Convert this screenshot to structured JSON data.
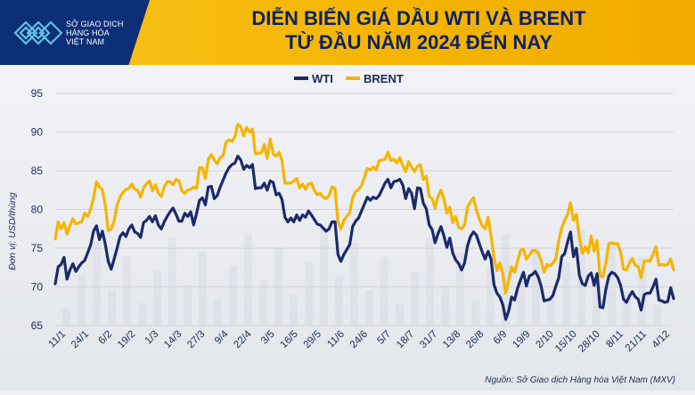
{
  "logo": {
    "line1": "SỞ GIAO DỊCH",
    "line2": "HÀNG HÓA",
    "line3": "VIỆT NAM"
  },
  "title": {
    "line1": "DIỄN BIẾN GIÁ DẦU WTI VÀ BRENT",
    "line2": "TỪ ĐẦU NĂM 2024 ĐẾN NAY"
  },
  "source": "Nguồn: Sở Giao dịch Hàng hóa Việt Nam (MXV)",
  "colors": {
    "wti": "#1b2a6b",
    "brent": "#f5b400",
    "banner": "#f5b400",
    "logo_bg": "#0d2f78"
  },
  "chart_data": {
    "type": "line",
    "title": "DIỄN BIẾN GIÁ DẦU WTI VÀ BRENT TỪ ĐẦU NĂM 2024 ĐẾN NAY",
    "ylabel": "Đơn vị: USD/thùng",
    "xlabel": "",
    "ylim": [
      65,
      95
    ],
    "yticks": [
      65,
      70,
      75,
      80,
      85,
      90,
      95
    ],
    "grid": true,
    "legend_position": "top-center",
    "x_tick_labels": [
      "11/1",
      "24/1",
      "6/2",
      "19/2",
      "1/3",
      "14/3",
      "27/3",
      "9/4",
      "22/4",
      "3/5",
      "16/5",
      "29/5",
      "11/6",
      "24/6",
      "5/7",
      "18/7",
      "31/7",
      "13/8",
      "26/8",
      "6/9",
      "19/9",
      "2/10",
      "15/10",
      "28/10",
      "8/11",
      "21/11",
      "4/12"
    ],
    "series": [
      {
        "name": "WTI",
        "color": "#1b2a6b",
        "values": [
          70.4,
          72.6,
          72.9,
          73.8,
          71.0,
          72.2,
          73.0,
          72.0,
          72.6,
          73.1,
          73.4,
          74.4,
          75.4,
          77.2,
          77.9,
          76.1,
          77.2,
          75.5,
          73.3,
          72.3,
          73.6,
          75.0,
          76.5,
          77.0,
          76.5,
          77.5,
          78.0,
          77.1,
          76.9,
          76.4,
          78.3,
          78.6,
          79.1,
          78.4,
          79.2,
          78.0,
          77.5,
          78.4,
          79.1,
          79.7,
          80.2,
          79.4,
          78.5,
          78.5,
          79.5,
          79.1,
          79.7,
          78.0,
          79.5,
          81.2,
          81.5,
          80.6,
          82.9,
          83.0,
          81.4,
          81.8,
          82.9,
          83.8,
          84.7,
          85.4,
          85.8,
          86.0,
          86.9,
          86.4,
          85.2,
          85.7,
          85.4,
          85.8,
          82.7,
          82.8,
          82.8,
          83.4,
          82.5,
          83.7,
          83.5,
          81.9,
          82.1,
          81.3,
          79.0,
          78.4,
          78.9,
          78.4,
          79.3,
          78.6,
          79.3,
          79.0,
          79.8,
          79.3,
          78.7,
          78.1,
          78.0,
          77.6,
          77.2,
          77.5,
          78.4,
          78.4,
          74.2,
          73.3,
          74.2,
          74.8,
          75.5,
          77.8,
          78.5,
          78.9,
          79.8,
          80.7,
          81.6,
          81.2,
          81.6,
          81.4,
          81.8,
          82.6,
          83.4,
          83.9,
          82.8,
          83.6,
          83.7,
          83.9,
          83.2,
          81.4,
          82.7,
          82.1,
          80.1,
          82.8,
          82.7,
          80.8,
          80.1,
          78.0,
          77.4,
          75.7,
          76.9,
          77.8,
          76.6,
          75.1,
          76.3,
          74.4,
          73.5,
          73.0,
          72.2,
          73.1,
          75.3,
          76.5,
          77.1,
          76.7,
          75.6,
          74.5,
          73.6,
          74.6,
          73.6,
          70.3,
          69.2,
          68.7,
          67.7,
          65.8,
          66.9,
          68.7,
          68.3,
          69.8,
          70.9,
          71.9,
          70.1,
          71.4,
          71.6,
          72.0,
          71.3,
          70.1,
          68.2,
          68.3,
          68.4,
          68.9,
          70.1,
          71.2,
          73.9,
          74.3,
          75.8,
          77.1,
          73.9,
          75.0,
          71.5,
          70.4,
          70.2,
          71.4,
          71.8,
          70.2,
          71.7,
          67.4,
          67.3,
          69.7,
          71.4,
          71.9,
          71.7,
          71.2,
          70.2,
          68.4,
          68.0,
          68.8,
          69.4,
          68.7,
          68.4,
          67.0,
          69.0,
          69.2,
          69.2,
          70.0,
          71.0,
          68.3,
          68.2,
          68.0,
          68.1,
          69.9,
          68.5
        ]
      },
      {
        "name": "BRENT",
        "color": "#f5b400",
        "values": [
          76.2,
          78.4,
          77.5,
          78.3,
          76.8,
          77.9,
          78.8,
          78.1,
          78.3,
          78.4,
          79.5,
          79.1,
          80.0,
          81.5,
          83.6,
          82.9,
          82.6,
          80.5,
          77.3,
          77.5,
          78.5,
          80.6,
          81.6,
          82.2,
          82.6,
          82.7,
          83.3,
          82.6,
          82.5,
          81.6,
          82.8,
          83.3,
          83.7,
          82.4,
          83.2,
          82.1,
          81.7,
          82.9,
          83.6,
          83.6,
          83.2,
          83.9,
          83.7,
          82.4,
          82.1,
          82.5,
          82.6,
          82.9,
          82.7,
          85.4,
          85.4,
          84.0,
          86.5,
          87.1,
          86.4,
          85.9,
          86.7,
          87.0,
          88.7,
          89.0,
          88.8,
          89.4,
          91.0,
          90.7,
          89.5,
          90.6,
          90.0,
          90.4,
          87.2,
          87.3,
          87.3,
          88.4,
          86.6,
          89.1,
          87.2,
          86.9,
          87.4,
          86.3,
          83.4,
          83.4,
          83.4,
          83.7,
          84.0,
          82.8,
          83.3,
          82.6,
          83.3,
          83.4,
          82.5,
          81.9,
          82.1,
          81.6,
          81.4,
          81.8,
          82.9,
          82.7,
          78.4,
          77.5,
          78.6,
          79.1,
          79.6,
          81.5,
          82.3,
          82.6,
          83.1,
          84.2,
          85.3,
          85.1,
          85.5,
          85.1,
          86.3,
          86.4,
          86.5,
          87.4,
          86.3,
          86.5,
          86.0,
          86.7,
          85.7,
          84.9,
          86.2,
          85.5,
          84.9,
          85.6,
          85.8,
          83.9,
          84.3,
          81.7,
          81.4,
          80.2,
          81.7,
          82.5,
          81.4,
          79.5,
          80.3,
          78.3,
          79.1,
          77.7,
          77.5,
          78.0,
          80.3,
          81.0,
          81.5,
          80.0,
          78.8,
          77.9,
          77.5,
          79.0,
          76.6,
          73.8,
          72.1,
          73.1,
          71.7,
          69.2,
          70.8,
          72.6,
          71.9,
          73.3,
          74.7,
          74.9,
          73.6,
          74.1,
          74.7,
          74.7,
          74.4,
          73.4,
          71.9,
          72.9,
          72.7,
          73.1,
          73.6,
          76.0,
          77.6,
          78.6,
          79.4,
          80.9,
          78.6,
          79.4,
          76.4,
          74.3,
          75.2,
          74.4,
          76.6,
          74.6,
          76.0,
          71.4,
          71.3,
          73.1,
          75.6,
          75.7,
          75.6,
          75.6,
          74.5,
          72.3,
          72.2,
          73.1,
          73.7,
          72.8,
          72.6,
          71.2,
          73.3,
          73.4,
          73.3,
          74.2,
          75.2,
          72.8,
          72.9,
          72.8,
          72.9,
          73.6,
          72.2
        ]
      }
    ]
  }
}
